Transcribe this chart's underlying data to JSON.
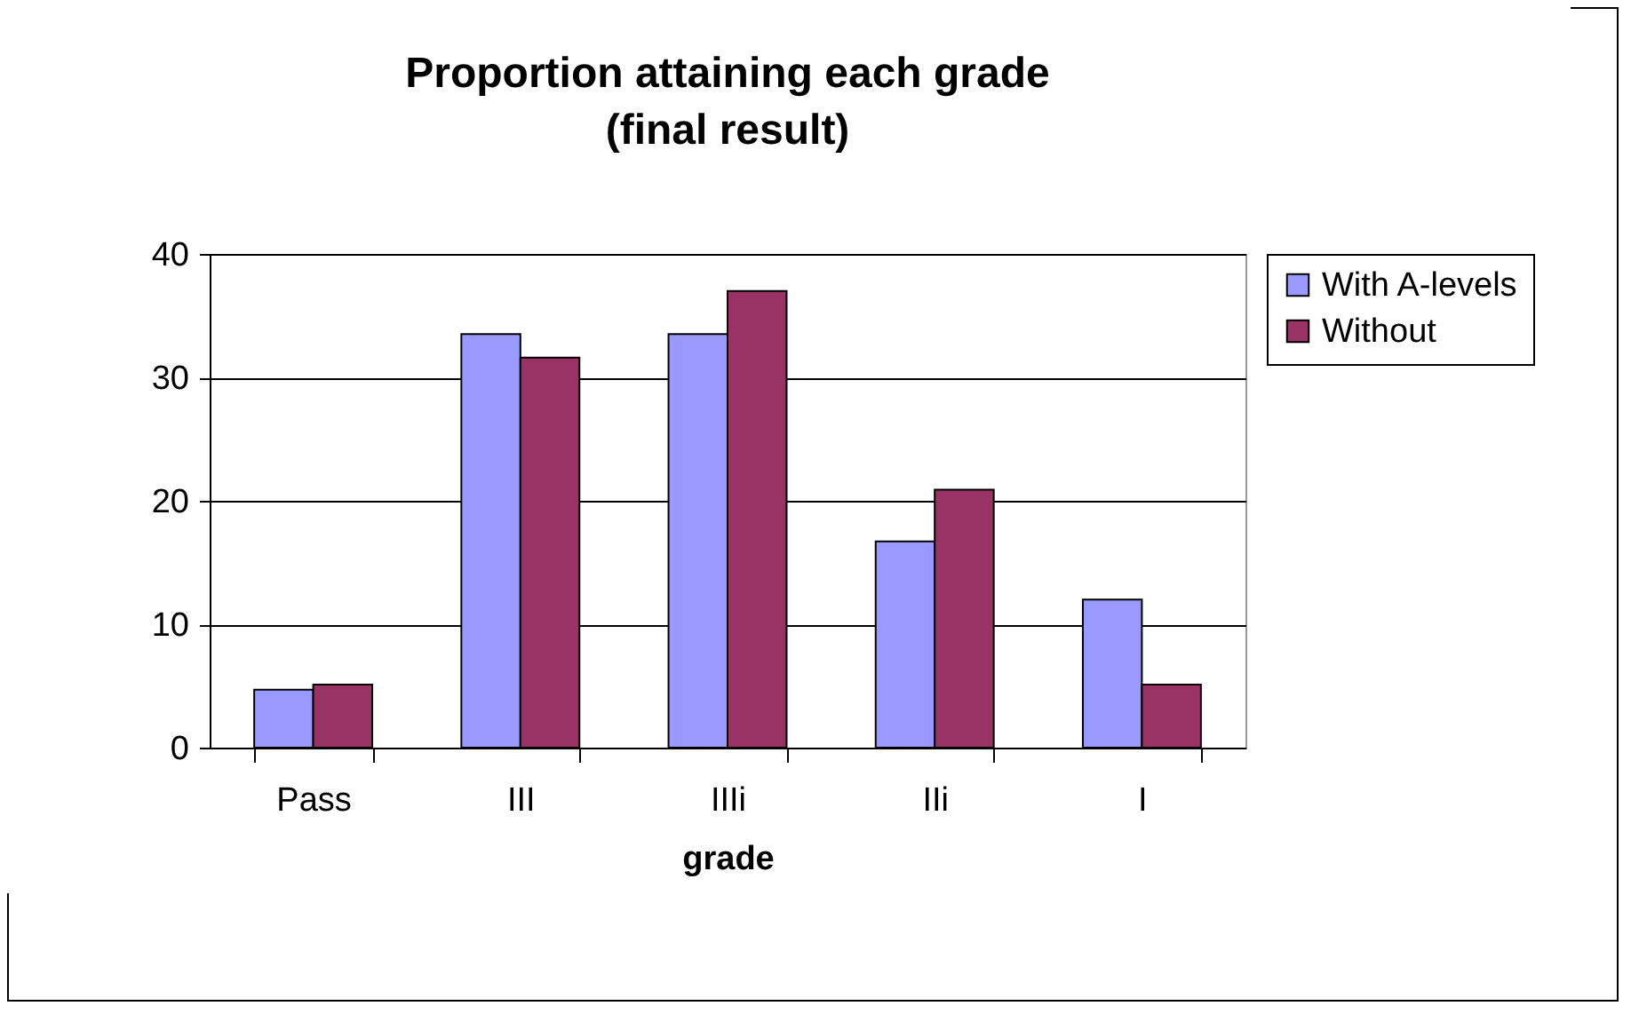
{
  "chart_data": {
    "type": "bar",
    "title": "Proportion attaining each grade",
    "subtitle": "(final result)",
    "xlabel": "grade",
    "categories": [
      "Pass",
      "III",
      "IIIi",
      "IIi",
      "I"
    ],
    "series": [
      {
        "name": "With A-levels",
        "color": "#9999ff",
        "values": [
          4.7,
          33.5,
          33.5,
          16.7,
          12.0
        ]
      },
      {
        "name": "Without",
        "color": "#993366",
        "values": [
          5.1,
          31.6,
          37.0,
          20.9,
          5.1
        ]
      }
    ],
    "ylim": [
      0,
      40
    ],
    "yticks": [
      0,
      10,
      20,
      30,
      40
    ],
    "grid": "y",
    "legend": "right"
  }
}
